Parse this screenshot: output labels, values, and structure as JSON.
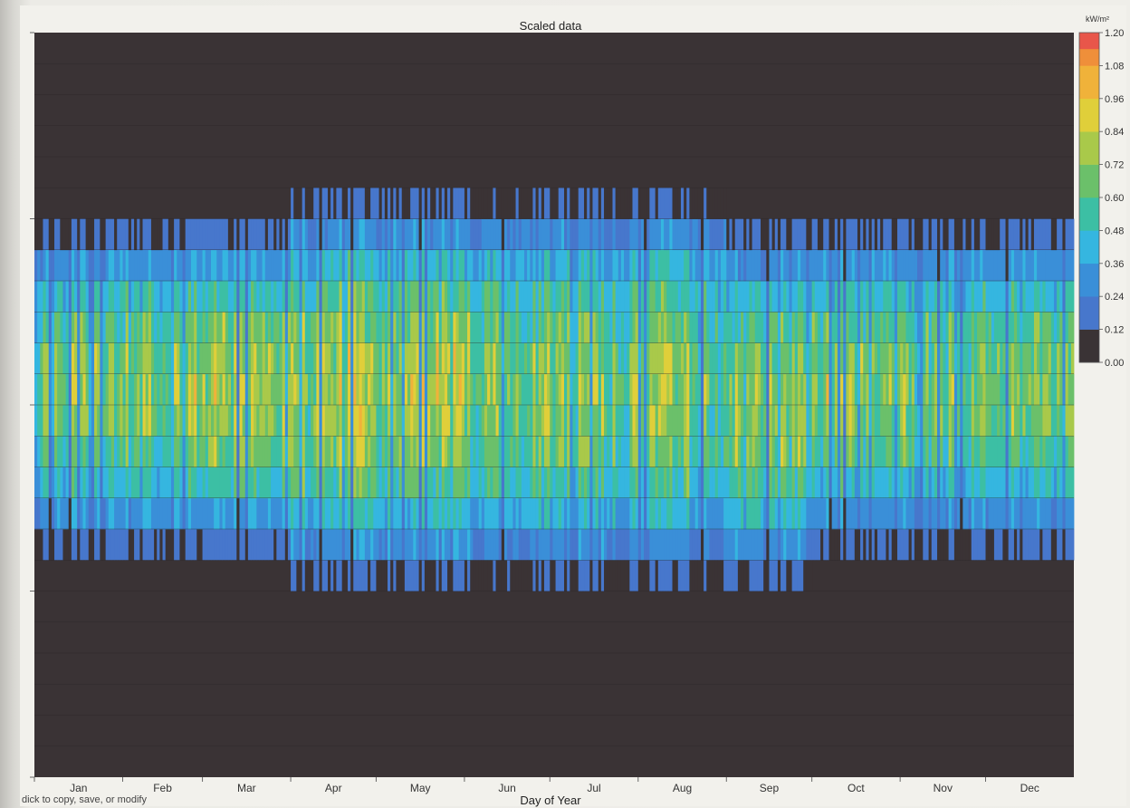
{
  "status_text": "dick to copy, save, or modify",
  "colorbar": {
    "unit": "kW/m²",
    "ticks": [
      "1.20",
      "1.08",
      "0.96",
      "0.84",
      "0.72",
      "0.60",
      "0.48",
      "0.36",
      "0.24",
      "0.12",
      "0.00"
    ],
    "colors": [
      "#3a3335",
      "#4777cc",
      "#3a8fd8",
      "#35b6e0",
      "#3cbfa4",
      "#6bc06a",
      "#a9c94a",
      "#e0cf3a",
      "#f0b23a",
      "#ef8f3a",
      "#e8564a"
    ]
  },
  "chart_data": {
    "type": "heatmap",
    "title": "Scaled data",
    "xlabel": "Day of Year",
    "ylabel": "",
    "x_tick_labels": [
      "Jan",
      "Feb",
      "Mar",
      "Apr",
      "May",
      "Jun",
      "Jul",
      "Aug",
      "Sep",
      "Oct",
      "Nov",
      "Dec"
    ],
    "x_range": [
      1,
      365
    ],
    "y_range": [
      0,
      24
    ],
    "value_range": [
      0,
      1.2
    ],
    "value_unit": "kW/m²",
    "colormap_levels": [
      0,
      0.12,
      0.24,
      0.36,
      0.48,
      0.6,
      0.72,
      0.84,
      0.96,
      1.08,
      1.2
    ],
    "grid": true,
    "legend": "right colorbar",
    "hours_of_sunlight_by_month": [
      {
        "month": "Jan",
        "first_hour": 7,
        "last_hour": 17,
        "peak_value": 0.85
      },
      {
        "month": "Feb",
        "first_hour": 7,
        "last_hour": 17,
        "peak_value": 0.9
      },
      {
        "month": "Mar",
        "first_hour": 7,
        "last_hour": 17,
        "peak_value": 0.92
      },
      {
        "month": "Apr",
        "first_hour": 6,
        "last_hour": 18,
        "peak_value": 0.96
      },
      {
        "month": "May",
        "first_hour": 6,
        "last_hour": 18,
        "peak_value": 0.92
      },
      {
        "month": "Jun",
        "first_hour": 6,
        "last_hour": 18,
        "peak_value": 0.86
      },
      {
        "month": "Jul",
        "first_hour": 6,
        "last_hour": 18,
        "peak_value": 0.84
      },
      {
        "month": "Aug",
        "first_hour": 6,
        "last_hour": 18,
        "peak_value": 0.86
      },
      {
        "month": "Sep",
        "first_hour": 6,
        "last_hour": 17,
        "peak_value": 0.88
      },
      {
        "month": "Oct",
        "first_hour": 7,
        "last_hour": 17,
        "peak_value": 0.9
      },
      {
        "month": "Nov",
        "first_hour": 7,
        "last_hour": 17,
        "peak_value": 0.84
      },
      {
        "month": "Dec",
        "first_hour": 7,
        "last_hour": 17,
        "peak_value": 0.8
      }
    ]
  }
}
